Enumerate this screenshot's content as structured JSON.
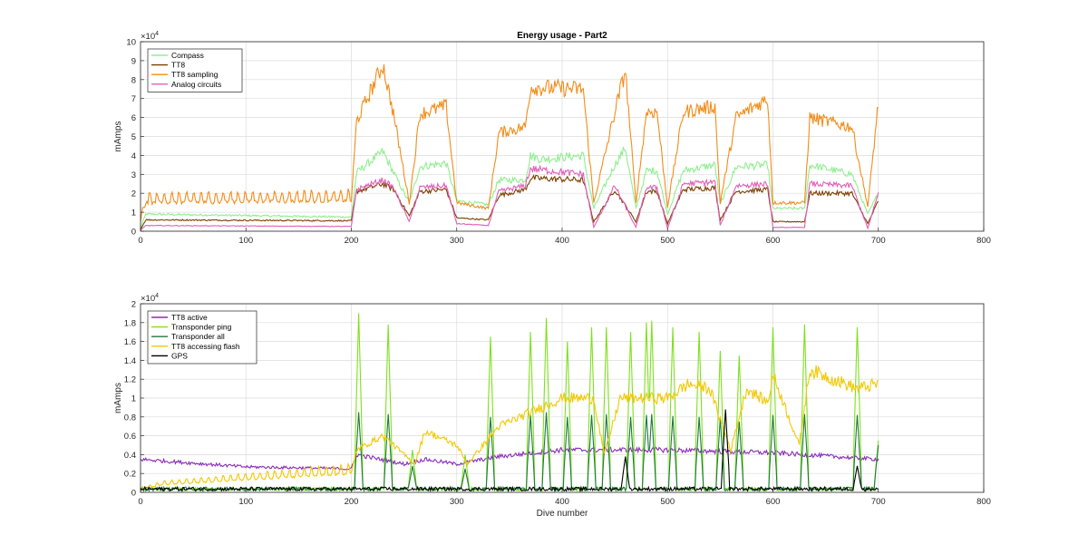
{
  "chart_data": [
    {
      "type": "line",
      "title": "Energy usage - Part2",
      "xlabel": "",
      "ylabel": "mAmps",
      "xlim": [
        0,
        800
      ],
      "ylim": [
        0,
        100000
      ],
      "x_ticks": [
        "0",
        "100",
        "200",
        "300",
        "400",
        "500",
        "600",
        "700",
        "800"
      ],
      "y_ticks": [
        "0",
        "1",
        "2",
        "3",
        "4",
        "5",
        "6",
        "7",
        "8",
        "9",
        "10"
      ],
      "y_exponent": "×10^4",
      "exponent_base": "×10",
      "exponent_power": "4",
      "grid": true,
      "legend_position": "top-left",
      "series": [
        {
          "name": "Compass",
          "color": "#90EE90",
          "breakpoints": [
            [
              0,
              2000
            ],
            [
              5,
              9000
            ],
            [
              200,
              7500
            ],
            [
              205,
              31000
            ],
            [
              230,
              42000
            ],
            [
              240,
              31000
            ],
            [
              255,
              15000
            ],
            [
              265,
              34000
            ],
            [
              290,
              36000
            ],
            [
              300,
              16000
            ],
            [
              330,
              14000
            ],
            [
              340,
              27000
            ],
            [
              365,
              27000
            ],
            [
              370,
              40000
            ],
            [
              380,
              38000
            ],
            [
              420,
              40000
            ],
            [
              430,
              12000
            ],
            [
              450,
              35000
            ],
            [
              460,
              44000
            ],
            [
              470,
              12000
            ],
            [
              480,
              32000
            ],
            [
              490,
              32000
            ],
            [
              500,
              9000
            ],
            [
              515,
              32000
            ],
            [
              545,
              35000
            ],
            [
              550,
              14000
            ],
            [
              565,
              34000
            ],
            [
              595,
              35000
            ],
            [
              600,
              12000
            ],
            [
              630,
              12000
            ],
            [
              635,
              35000
            ],
            [
              675,
              30000
            ],
            [
              690,
              9000
            ],
            [
              700,
              20000
            ]
          ]
        },
        {
          "name": "TT8",
          "color": "#7B3F00",
          "breakpoints": [
            [
              0,
              1000
            ],
            [
              5,
              6000
            ],
            [
              200,
              5500
            ],
            [
              205,
              21000
            ],
            [
              230,
              25000
            ],
            [
              240,
              22000
            ],
            [
              255,
              8000
            ],
            [
              265,
              21000
            ],
            [
              290,
              22000
            ],
            [
              300,
              7000
            ],
            [
              330,
              6000
            ],
            [
              340,
              19000
            ],
            [
              365,
              22000
            ],
            [
              370,
              28000
            ],
            [
              420,
              27000
            ],
            [
              430,
              5000
            ],
            [
              450,
              22000
            ],
            [
              470,
              5000
            ],
            [
              480,
              21000
            ],
            [
              490,
              21000
            ],
            [
              500,
              4000
            ],
            [
              515,
              22000
            ],
            [
              545,
              23000
            ],
            [
              550,
              6000
            ],
            [
              565,
              21000
            ],
            [
              595,
              22000
            ],
            [
              600,
              5000
            ],
            [
              630,
              5000
            ],
            [
              635,
              20000
            ],
            [
              675,
              20000
            ],
            [
              690,
              4000
            ],
            [
              700,
              16000
            ]
          ]
        },
        {
          "name": "TT8 sampling",
          "color": "#F28C1A",
          "breakpoints": [
            [
              0,
              5000
            ],
            [
              5,
              15000
            ],
            [
              200,
              16000
            ],
            [
              205,
              58000
            ],
            [
              230,
              88000
            ],
            [
              240,
              62000
            ],
            [
              255,
              15000
            ],
            [
              265,
              62000
            ],
            [
              290,
              66000
            ],
            [
              300,
              15000
            ],
            [
              330,
              12000
            ],
            [
              340,
              52000
            ],
            [
              365,
              55000
            ],
            [
              370,
              76000
            ],
            [
              420,
              75000
            ],
            [
              430,
              15000
            ],
            [
              450,
              63000
            ],
            [
              460,
              85000
            ],
            [
              470,
              15000
            ],
            [
              480,
              63000
            ],
            [
              490,
              63000
            ],
            [
              500,
              13000
            ],
            [
              515,
              63000
            ],
            [
              545,
              66000
            ],
            [
              550,
              15000
            ],
            [
              565,
              60000
            ],
            [
              595,
              70000
            ],
            [
              600,
              15000
            ],
            [
              630,
              15000
            ],
            [
              635,
              60000
            ],
            [
              675,
              55000
            ],
            [
              690,
              13000
            ],
            [
              700,
              68000
            ]
          ]
        },
        {
          "name": "Analog circuits",
          "color": "#E060B8",
          "breakpoints": [
            [
              0,
              500
            ],
            [
              5,
              3000
            ],
            [
              200,
              2500
            ],
            [
              205,
              22000
            ],
            [
              230,
              27000
            ],
            [
              240,
              23000
            ],
            [
              255,
              5000
            ],
            [
              265,
              23000
            ],
            [
              290,
              24000
            ],
            [
              300,
              4000
            ],
            [
              330,
              3000
            ],
            [
              340,
              21000
            ],
            [
              365,
              24000
            ],
            [
              370,
              33000
            ],
            [
              420,
              30000
            ],
            [
              430,
              2000
            ],
            [
              450,
              24000
            ],
            [
              470,
              2000
            ],
            [
              480,
              23000
            ],
            [
              490,
              23000
            ],
            [
              500,
              1500
            ],
            [
              515,
              25000
            ],
            [
              545,
              26000
            ],
            [
              550,
              3000
            ],
            [
              565,
              24000
            ],
            [
              595,
              25000
            ],
            [
              600,
              2000
            ],
            [
              630,
              2000
            ],
            [
              635,
              25000
            ],
            [
              675,
              24000
            ],
            [
              690,
              1500
            ],
            [
              700,
              20000
            ]
          ]
        }
      ]
    },
    {
      "type": "line",
      "title": "",
      "xlabel": "Dive number",
      "ylabel": "mAmps",
      "xlim": [
        0,
        800
      ],
      "ylim": [
        0,
        20000
      ],
      "x_ticks": [
        "0",
        "100",
        "200",
        "300",
        "400",
        "500",
        "600",
        "700",
        "800"
      ],
      "y_ticks": [
        "0",
        "0.2",
        "0.4",
        "0.6",
        "0.8",
        "1",
        "1.2",
        "1.4",
        "1.6",
        "1.8",
        "2"
      ],
      "y_exponent": "×10^4",
      "exponent_base": "×10",
      "exponent_power": "4",
      "grid": true,
      "legend_position": "top-left",
      "series": [
        {
          "name": "TT8 active",
          "color": "#8B2BB9",
          "breakpoints": [
            [
              0,
              3500
            ],
            [
              100,
              2700
            ],
            [
              200,
              2500
            ],
            [
              205,
              4000
            ],
            [
              250,
              3000
            ],
            [
              270,
              3500
            ],
            [
              300,
              3000
            ],
            [
              340,
              3800
            ],
            [
              400,
              4500
            ],
            [
              500,
              4500
            ],
            [
              600,
              4200
            ],
            [
              700,
              3500
            ]
          ]
        },
        {
          "name": "Transponder ping",
          "color": "#7FE01F",
          "spikes": [
            207,
            235,
            258,
            308,
            332,
            370,
            385,
            405,
            428,
            442,
            465,
            480,
            485,
            505,
            530,
            550,
            568,
            600,
            630,
            680,
            700
          ],
          "spike_values": [
            19000,
            17800,
            4500,
            4000,
            16500,
            17000,
            18500,
            16000,
            17500,
            17500,
            17000,
            18000,
            18200,
            17500,
            17000,
            15000,
            14500,
            17500,
            17800,
            17500,
            5500
          ]
        },
        {
          "name": "Transponder all",
          "color": "#1E7A3C",
          "spikes": [
            207,
            235,
            258,
            308,
            332,
            370,
            385,
            405,
            428,
            442,
            465,
            480,
            485,
            505,
            530,
            550,
            568,
            600,
            630,
            680,
            700
          ],
          "spike_values": [
            8500,
            8300,
            2800,
            2500,
            8000,
            8200,
            8500,
            8000,
            8200,
            8300,
            8000,
            8200,
            8300,
            8100,
            8000,
            7800,
            7500,
            8200,
            8300,
            8200,
            5000
          ]
        },
        {
          "name": "TT8 accessing flash",
          "color": "#F2C800",
          "breakpoints": [
            [
              0,
              300
            ],
            [
              20,
              800
            ],
            [
              200,
              2000
            ],
            [
              205,
              4500
            ],
            [
              230,
              6000
            ],
            [
              260,
              3000
            ],
            [
              270,
              6500
            ],
            [
              300,
              5000
            ],
            [
              310,
              3000
            ],
            [
              340,
              7000
            ],
            [
              380,
              9000
            ],
            [
              400,
              10000
            ],
            [
              430,
              10000
            ],
            [
              440,
              4000
            ],
            [
              455,
              10000
            ],
            [
              470,
              10000
            ],
            [
              500,
              10000
            ],
            [
              520,
              11500
            ],
            [
              540,
              11000
            ],
            [
              560,
              4500
            ],
            [
              575,
              11000
            ],
            [
              595,
              9500
            ],
            [
              600,
              12500
            ],
            [
              625,
              5000
            ],
            [
              635,
              13000
            ],
            [
              680,
              11000
            ],
            [
              700,
              11500
            ]
          ]
        },
        {
          "name": "GPS",
          "color": "#000000",
          "spikes": [
            460,
            555,
            680
          ],
          "spike_values": [
            3800,
            8800,
            2800
          ]
        }
      ]
    }
  ]
}
